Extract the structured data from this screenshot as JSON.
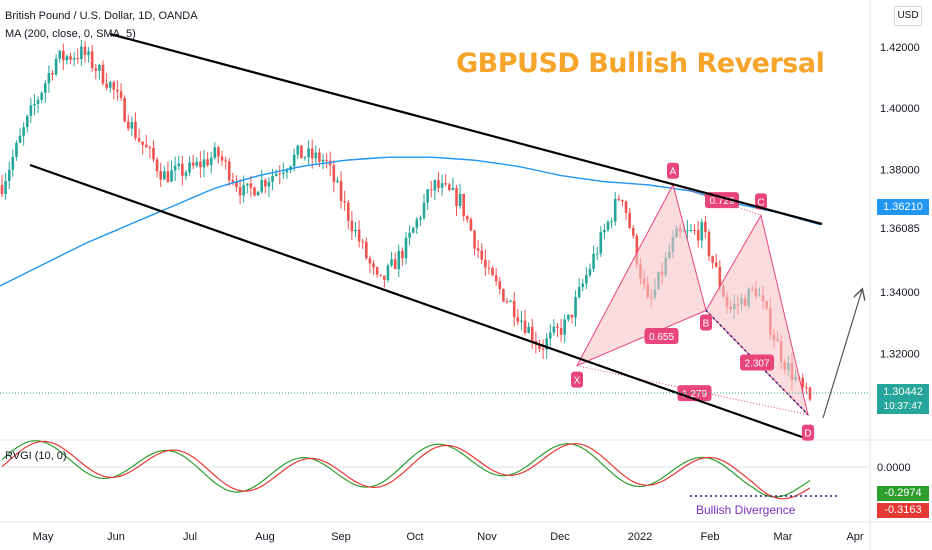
{
  "header": {
    "symbol_line": "British Pound / U.S. Dollar, 1D, OANDA",
    "ma_line": "MA (200, close, 0, SMA, 5)",
    "currency_button": "USD"
  },
  "overlay_title": "GBPUSD Bullish Reversal",
  "price_axis": {
    "ticks": [
      "1.42000",
      "1.40000",
      "1.38000",
      "1.36085",
      "1.34000",
      "1.32000"
    ],
    "ma_tag": "1.36210",
    "last_price_tag": "1.30442",
    "countdown_tag": "10:37:47"
  },
  "oscillator": {
    "label": "RVGI (10, 0)",
    "ticks": [
      "0.0000"
    ],
    "tag_green": "-0.2974",
    "tag_red": "-0.3163",
    "divergence_label": "Bullish Divergence"
  },
  "time_axis": [
    "May",
    "Jun",
    "Jul",
    "Aug",
    "Sep",
    "Oct",
    "Nov",
    "Dec",
    "2022",
    "Feb",
    "Mar",
    "Apr"
  ],
  "pattern": {
    "points": [
      "X",
      "A",
      "B",
      "C",
      "D"
    ],
    "ratios": [
      "0.655",
      "0.729",
      "2.307",
      "1.279"
    ]
  },
  "colors": {
    "up": "#26a69a",
    "down": "#ef5350",
    "ma": "#2196f3",
    "pattern_fill": "#f8c4c8",
    "pattern_label": "#e8457a",
    "title": "#f7a42b",
    "ma_tag": "#2196f3",
    "last_tag": "#26a69a",
    "divergence": "#7b2fbf"
  },
  "chart_data": {
    "type": "candlestick",
    "symbol": "GBPUSD",
    "timeframe": "1D",
    "ylim": [
      1.295,
      1.432
    ],
    "x": [
      "May",
      "Jun",
      "Jul",
      "Aug",
      "Sep",
      "Oct",
      "Nov",
      "Dec",
      "2022",
      "Feb",
      "Mar"
    ],
    "close_path": [
      1.375,
      1.397,
      1.416,
      1.418,
      1.408,
      1.391,
      1.378,
      1.38,
      1.385,
      1.372,
      1.378,
      1.385,
      1.383,
      1.362,
      1.342,
      1.355,
      1.375,
      1.37,
      1.346,
      1.335,
      1.322,
      1.33,
      1.352,
      1.373,
      1.335,
      1.358,
      1.36,
      1.334,
      1.341,
      1.318,
      1.304
    ],
    "ma200_path": [
      1.342,
      1.349,
      1.356,
      1.362,
      1.368,
      1.374,
      1.378,
      1.381,
      1.383,
      1.384,
      1.384,
      1.383,
      1.381,
      1.378,
      1.376,
      1.375,
      1.373,
      1.369,
      1.366,
      1.362
    ],
    "xabcd": {
      "X": 1.316,
      "A": 1.375,
      "B": 1.334,
      "C": 1.365,
      "D": 1.3
    },
    "rvgi_zero": 0
  }
}
